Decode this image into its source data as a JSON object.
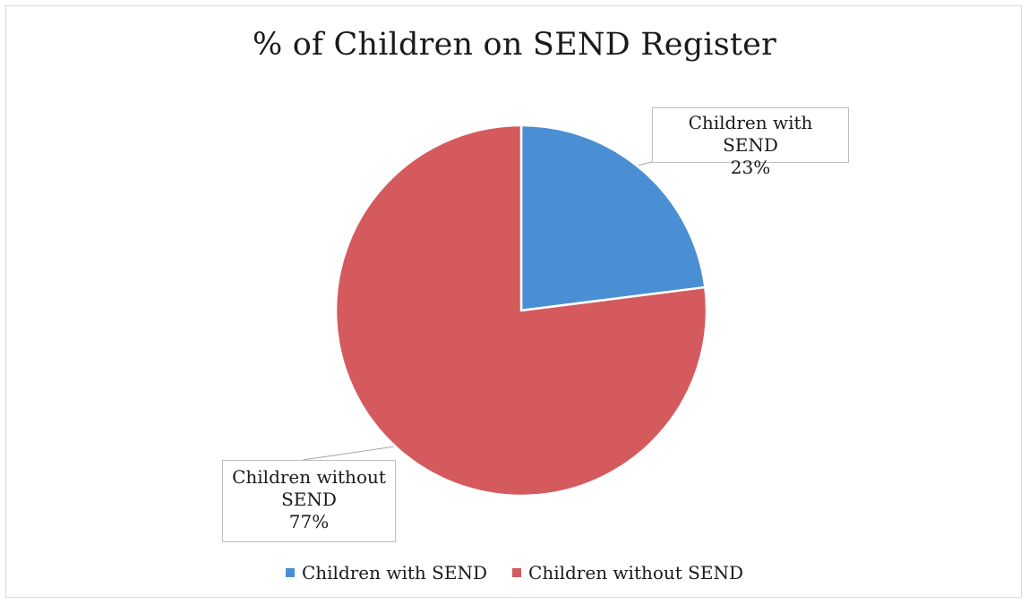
{
  "chart_data": {
    "type": "pie",
    "title": "% of Children on SEND Register",
    "categories": [
      "Children with SEND",
      "Children without SEND"
    ],
    "values": [
      23,
      77
    ],
    "value_labels": [
      "23%",
      "77%"
    ],
    "colors": [
      "#4a8fd4",
      "#d45a5e"
    ],
    "legend": {
      "placement": "bottom",
      "items": [
        "Children with SEND",
        "Children without SEND"
      ]
    },
    "data_labels": [
      {
        "lines": [
          "Children with SEND",
          "23%"
        ]
      },
      {
        "lines": [
          "Children without",
          "SEND",
          "77%"
        ]
      }
    ]
  }
}
